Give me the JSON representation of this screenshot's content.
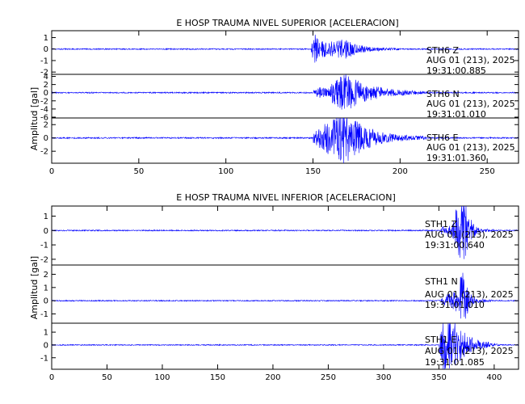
{
  "chart_data": [
    {
      "type": "line",
      "title": "E HOSP TRAUMA NIVEL SUPERIOR [ACELERACION]",
      "ylabel": "Amplitud  [gal]",
      "xlabel": "",
      "xlim": [
        0,
        268
      ],
      "xticks": [
        "0",
        "50",
        "100",
        "150",
        "200",
        "250"
      ],
      "color": "#0000ff",
      "traces": [
        {
          "ylim": [
            -2.2,
            1.6
          ],
          "yticks": [
            "1",
            "0",
            "-1",
            "-2"
          ],
          "station": "STH6   Z",
          "date": "AUG 01 (213), 2025",
          "time": "19:31:00.885",
          "noise": 0.05,
          "bursts": [
            {
              "start": 149,
              "peak": 151,
              "end": 175,
              "amp": 1.3
            },
            {
              "start": 160,
              "peak": 168,
              "end": 200,
              "amp": 0.7
            }
          ]
        },
        {
          "ylim": [
            -6.2,
            4.5
          ],
          "yticks": [
            "4",
            "2",
            "0",
            "-2",
            "-4",
            "-6"
          ],
          "station": "STH6   N",
          "date": "AUG 01 (213), 2025",
          "time": "19:31:01.010",
          "noise": 0.15,
          "bursts": [
            {
              "start": 150,
              "peak": 154,
              "end": 180,
              "amp": 1.6
            },
            {
              "start": 160,
              "peak": 168,
              "end": 215,
              "amp": 4.5
            }
          ]
        },
        {
          "ylim": [
            -3.8,
            3.0
          ],
          "yticks": [
            "2",
            "0",
            "-2"
          ],
          "station": "STH6   E",
          "date": "AUG 01 (213), 2025",
          "time": "19:31:01.360",
          "noise": 0.1,
          "bursts": [
            {
              "start": 150,
              "peak": 158,
              "end": 185,
              "amp": 2.5
            },
            {
              "start": 160,
              "peak": 168,
              "end": 215,
              "amp": 3.2
            }
          ]
        }
      ]
    },
    {
      "type": "line",
      "title": "E HOSP TRAUMA NIVEL INFERIOR [ACELERACION]",
      "ylabel": "Amplitud  [gal]",
      "xlabel": "",
      "xlim": [
        0,
        422
      ],
      "xticks": [
        "0",
        "50",
        "100",
        "150",
        "200",
        "250",
        "300",
        "350",
        "400"
      ],
      "color": "#0000ff",
      "traces": [
        {
          "ylim": [
            -2.4,
            1.7
          ],
          "yticks": [
            "1",
            "0",
            "-1",
            "-2"
          ],
          "station": "STH1   Z",
          "date": "AUG 01 (213), 2025",
          "time": "19:31:00.640",
          "noise": 0.04,
          "bursts": [
            {
              "start": 352,
              "peak": 368,
              "end": 400,
              "amp": 0.8
            },
            {
              "start": 365,
              "peak": 372,
              "end": 385,
              "amp": 2.3
            }
          ]
        },
        {
          "ylim": [
            -1.7,
            2.7
          ],
          "yticks": [
            "2",
            "1",
            "0",
            "-1"
          ],
          "station": "STH1   N",
          "date": "AUG 01 (213), 2025",
          "time": "19:31:01.010",
          "noise": 0.04,
          "bursts": [
            {
              "start": 352,
              "peak": 366,
              "end": 398,
              "amp": 0.8
            },
            {
              "start": 368,
              "peak": 371,
              "end": 382,
              "amp": 2.3
            }
          ]
        },
        {
          "ylim": [
            -1.9,
            1.7
          ],
          "yticks": [
            "1",
            "0",
            "-1"
          ],
          "station": "STH1   E",
          "date": "AUG 01 (213), 2025",
          "time": "19:31:01.085",
          "noise": 0.04,
          "bursts": [
            {
              "start": 350,
              "peak": 354,
              "end": 395,
              "amp": 1.8
            },
            {
              "start": 352,
              "peak": 365,
              "end": 405,
              "amp": 0.9
            }
          ]
        }
      ]
    }
  ]
}
